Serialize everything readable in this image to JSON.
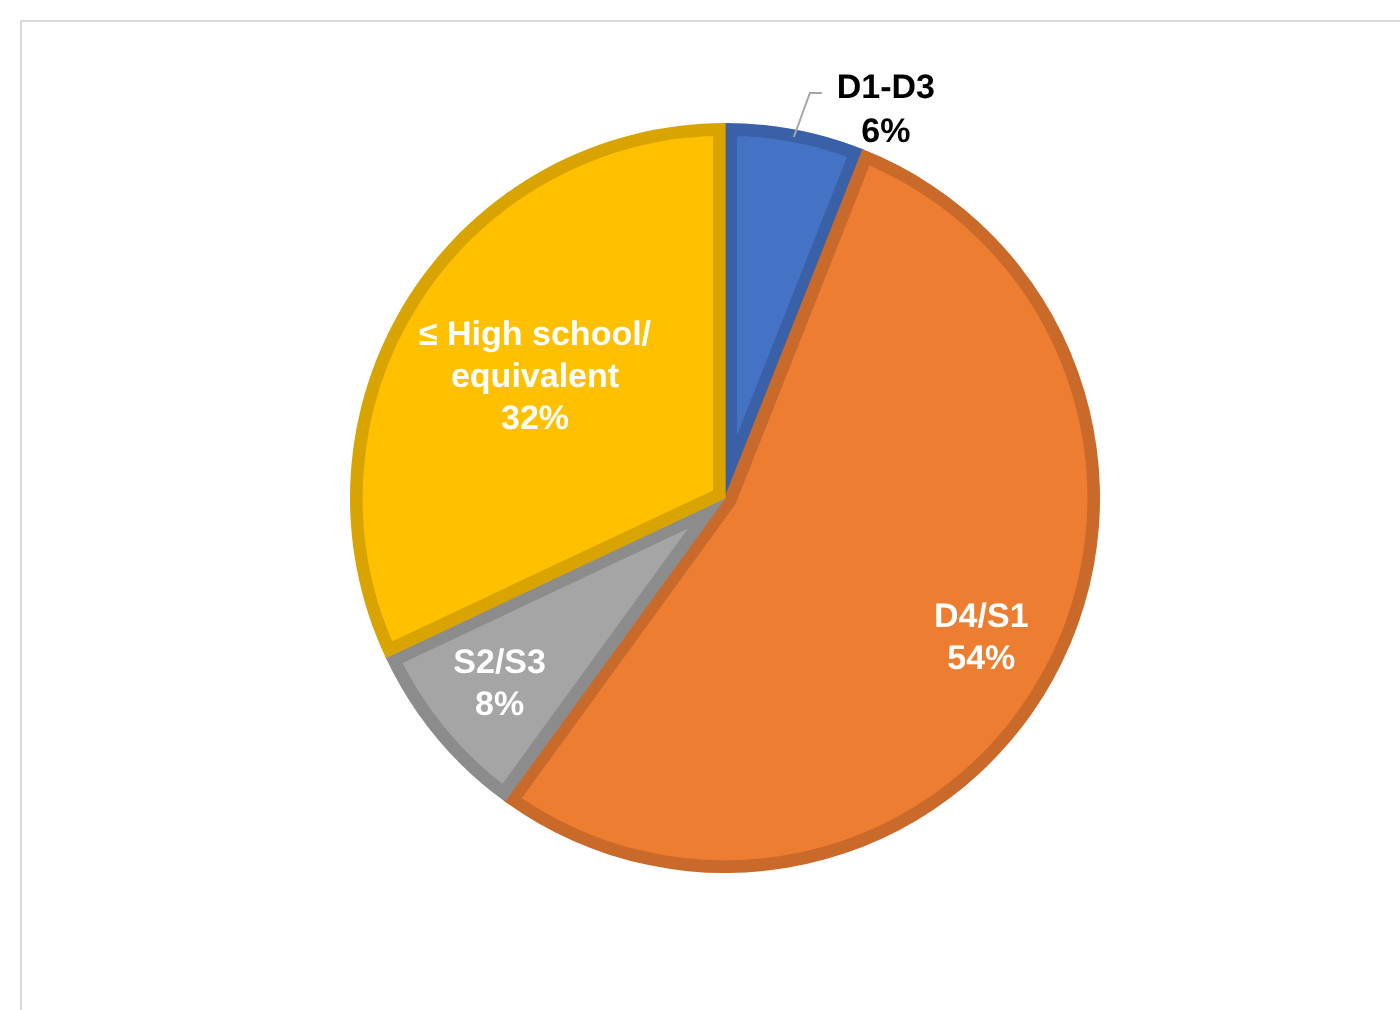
{
  "chart_data": {
    "type": "pie",
    "categories": [
      "D1-D3",
      "D4/S1",
      "S2/S3",
      "≤ High school/equivalent"
    ],
    "values": [
      6,
      54,
      8,
      32
    ],
    "colors": [
      "#4472c4",
      "#ed7d31",
      "#a5a5a5",
      "#ffc000"
    ],
    "value_labels": [
      "6%",
      "54%",
      "8%",
      "32%"
    ],
    "legend": false
  }
}
